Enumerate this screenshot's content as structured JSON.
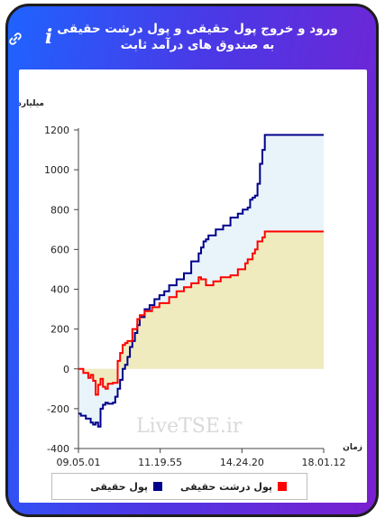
{
  "header": {
    "title": "ورود و خروج پول حقیقی و پول درشت حقیقی به صندوق های درآمد ثابت",
    "info_icon": "info-icon",
    "link_icon": "link-icon"
  },
  "colors": {
    "frame_gradient_start": "#1f63ff",
    "frame_gradient_end": "#7a1fcf",
    "real_money_line": "#00008b",
    "big_real_money_line": "#ff0000",
    "real_money_fill": "#e8f4fa",
    "big_real_money_fill": "#f0ebbe"
  },
  "chart_data": {
    "type": "area",
    "ylabel": "میلیارد تومان",
    "xlabel": "زمان",
    "ylim": [
      -400,
      1200
    ],
    "yticks": [
      -400,
      -200,
      0,
      200,
      400,
      600,
      800,
      1000,
      1200
    ],
    "xticks": [
      "09.05.01",
      "11.19.55",
      "14.24.20",
      "18.01.12"
    ],
    "watermark": "LiveTSE.ir",
    "series": [
      {
        "name": "پول حقیقی",
        "x": [
          0,
          0.01,
          0.03,
          0.05,
          0.06,
          0.07,
          0.08,
          0.09,
          0.1,
          0.11,
          0.12,
          0.14,
          0.15,
          0.16,
          0.17,
          0.18,
          0.19,
          0.2,
          0.21,
          0.22,
          0.23,
          0.24,
          0.25,
          0.27,
          0.29,
          0.31,
          0.33,
          0.35,
          0.37,
          0.4,
          0.43,
          0.46,
          0.49,
          0.5,
          0.51,
          0.52,
          0.53,
          0.56,
          0.59,
          0.62,
          0.65,
          0.67,
          0.69,
          0.7,
          0.71,
          0.72,
          0.73,
          0.74,
          0.75,
          0.76,
          1.0
        ],
        "y": [
          -225,
          -235,
          -250,
          -270,
          -280,
          -270,
          -290,
          -200,
          -180,
          -170,
          -175,
          -170,
          -140,
          -100,
          -55,
          0,
          20,
          60,
          110,
          140,
          180,
          220,
          260,
          300,
          320,
          350,
          370,
          390,
          420,
          450,
          480,
          540,
          580,
          610,
          640,
          650,
          670,
          700,
          720,
          760,
          780,
          800,
          810,
          850,
          860,
          870,
          930,
          1030,
          1100,
          1175,
          1175
        ]
      },
      {
        "name": "پول درشت حقیقی",
        "x": [
          0,
          0.02,
          0.04,
          0.05,
          0.06,
          0.07,
          0.08,
          0.09,
          0.1,
          0.11,
          0.12,
          0.14,
          0.16,
          0.17,
          0.18,
          0.19,
          0.2,
          0.22,
          0.24,
          0.25,
          0.27,
          0.3,
          0.33,
          0.37,
          0.4,
          0.43,
          0.46,
          0.49,
          0.5,
          0.52,
          0.55,
          0.58,
          0.62,
          0.65,
          0.68,
          0.69,
          0.71,
          0.72,
          0.73,
          0.75,
          0.76,
          1.0
        ],
        "y": [
          0,
          -20,
          -45,
          -30,
          -60,
          -130,
          -80,
          -50,
          -90,
          -100,
          -75,
          -70,
          40,
          80,
          120,
          130,
          140,
          200,
          250,
          270,
          290,
          310,
          330,
          360,
          390,
          410,
          430,
          460,
          450,
          420,
          440,
          460,
          470,
          500,
          530,
          550,
          580,
          600,
          640,
          660,
          690,
          690
        ]
      }
    ]
  },
  "legend": [
    {
      "label": "پول حقیقی",
      "color": "#00008b"
    },
    {
      "label": "پول درشت حقیقی",
      "color": "#ff0000"
    }
  ]
}
